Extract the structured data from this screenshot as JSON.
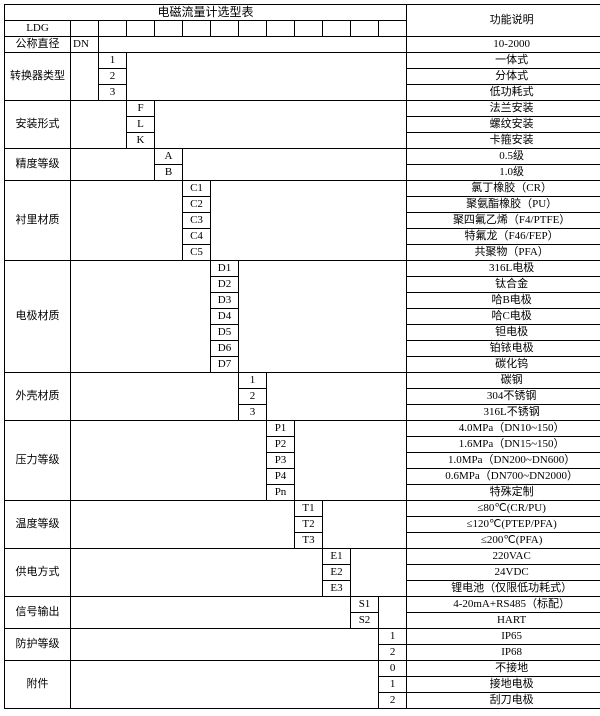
{
  "header": {
    "title": "电磁流量计选型表",
    "desc_title": "功能说明",
    "ldg": "LDG",
    "dn": "DN",
    "nominal": "公称直径",
    "nominal_desc": "10-2000"
  },
  "sections": [
    {
      "label": "转换器类型",
      "codes": [
        "1",
        "2",
        "3"
      ],
      "descs": [
        "一体式",
        "分体式",
        "低功耗式"
      ]
    },
    {
      "label": "安装形式",
      "codes": [
        "F",
        "L",
        "K"
      ],
      "descs": [
        "法兰安装",
        "螺纹安装",
        "卡箍安装"
      ]
    },
    {
      "label": "精度等级",
      "codes": [
        "A",
        "B"
      ],
      "descs": [
        "0.5级",
        "1.0级"
      ]
    },
    {
      "label": "衬里材质",
      "codes": [
        "C1",
        "C2",
        "C3",
        "C4",
        "C5"
      ],
      "descs": [
        "氯丁橡胶（CR）",
        "聚氨酯橡胶（PU）",
        "聚四氟乙烯（F4/PTFE）",
        "特氟龙（F46/FEP）",
        "共聚物（PFA）"
      ]
    },
    {
      "label": "电极材质",
      "codes": [
        "D1",
        "D2",
        "D3",
        "D4",
        "D5",
        "D6",
        "D7"
      ],
      "descs": [
        "316L电极",
        "钛合金",
        "哈B电极",
        "哈C电极",
        "钽电极",
        "铂铱电极",
        "碳化钨"
      ]
    },
    {
      "label": "外壳材质",
      "codes": [
        "1",
        "2",
        "3"
      ],
      "descs": [
        "碳钢",
        "304不锈钢",
        "316L不锈钢"
      ]
    },
    {
      "label": "压力等级",
      "codes": [
        "P1",
        "P2",
        "P3",
        "P4",
        "Pn"
      ],
      "descs": [
        "4.0MPa（DN10~150）",
        "1.6MPa（DN15~150）",
        "1.0MPa（DN200~DN600）",
        "0.6MPa（DN700~DN2000）",
        "特殊定制"
      ]
    },
    {
      "label": "温度等级",
      "codes": [
        "T1",
        "T2",
        "T3"
      ],
      "descs": [
        "≤80℃(CR/PU)",
        "≤120℃(PTEP/PFA)",
        "≤200℃(PFA)"
      ]
    },
    {
      "label": "供电方式",
      "codes": [
        "E1",
        "E2",
        "E3"
      ],
      "descs": [
        "220VAC",
        "24VDC",
        "锂电池（仅限低功耗式）"
      ]
    },
    {
      "label": "信号输出",
      "codes": [
        "S1",
        "S2"
      ],
      "descs": [
        "4-20mA+RS485（标配）",
        "HART"
      ]
    },
    {
      "label": "防护等级",
      "codes": [
        "1",
        "2"
      ],
      "descs": [
        "IP65",
        "IP68"
      ]
    },
    {
      "label": "附件",
      "codes": [
        "0",
        "1",
        "2"
      ],
      "descs": [
        "不接地",
        "接地电极",
        "刮刀电极"
      ]
    }
  ]
}
